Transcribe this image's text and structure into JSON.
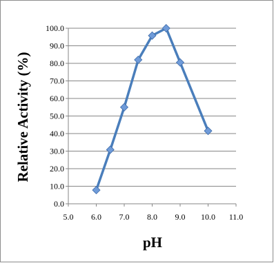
{
  "chart_data": {
    "type": "line",
    "title": "",
    "xlabel": "pH",
    "ylabel": "Relative Activity (%)",
    "xlim": [
      5.0,
      11.0
    ],
    "ylim": [
      0.0,
      100.0
    ],
    "xticks": [
      5.0,
      6.0,
      7.0,
      8.0,
      9.0,
      10.0,
      11.0
    ],
    "yticks": [
      0.0,
      10.0,
      20.0,
      30.0,
      40.0,
      50.0,
      60.0,
      70.0,
      80.0,
      90.0,
      100.0
    ],
    "x_tick_labels": [
      "5.0",
      "6.0",
      "7.0",
      "8.0",
      "9.0",
      "10.0",
      "11.0"
    ],
    "y_tick_labels": [
      "0.0",
      "10.0",
      "20.0",
      "30.0",
      "40.0",
      "50.0",
      "60.0",
      "70.0",
      "80.0",
      "90.0",
      "100.0"
    ],
    "grid": "horizontal",
    "legend": "none",
    "series": [
      {
        "color": "#4a7ebb",
        "marker": "diamond",
        "marker_color": "#6f9bd9",
        "x": [
          6.0,
          6.5,
          7.0,
          7.5,
          8.0,
          8.5,
          9.0,
          10.0
        ],
        "y": [
          7.8,
          30.8,
          55.0,
          82.0,
          95.8,
          100.0,
          80.5,
          41.5
        ]
      }
    ]
  }
}
